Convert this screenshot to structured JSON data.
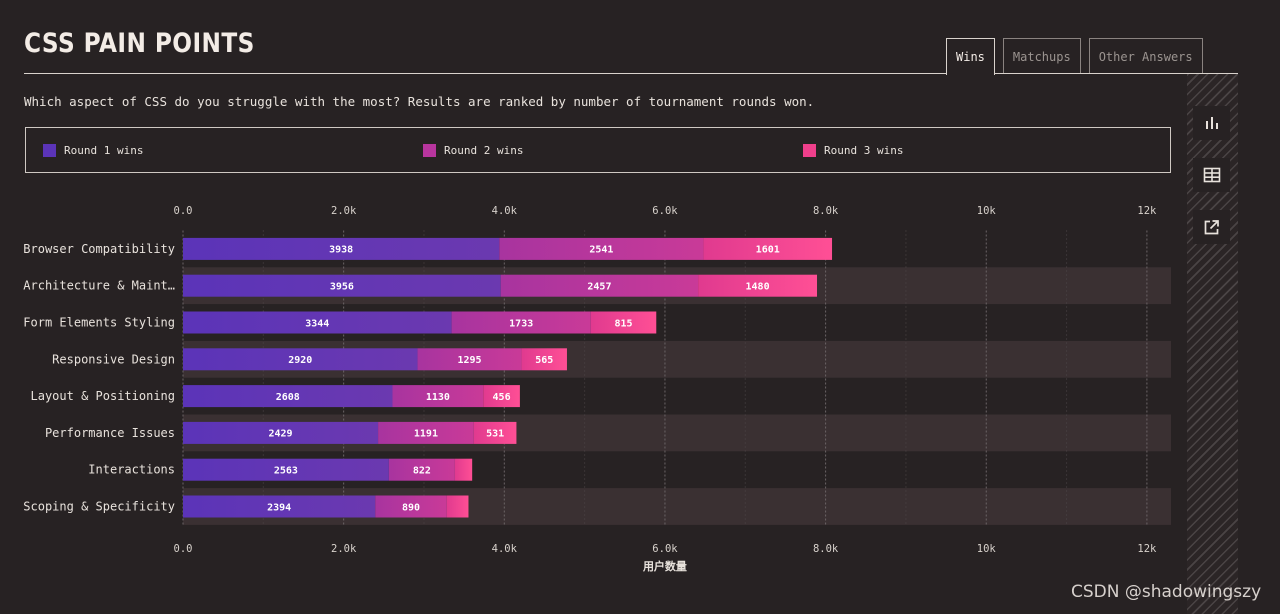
{
  "header": {
    "title": "CSS PAIN POINTS",
    "tabs": [
      {
        "label": "Wins",
        "active": true
      },
      {
        "label": "Matchups",
        "active": false
      },
      {
        "label": "Other Answers",
        "active": false
      }
    ],
    "description": "Which aspect of CSS do you struggle with the most? Results are ranked by number of tournament rounds won."
  },
  "legend": [
    {
      "label": "Round 1 wins",
      "color": "#5b34b8"
    },
    {
      "label": "Round 2 wins",
      "color": "#b8359e"
    },
    {
      "label": "Round 3 wins",
      "color": "#ef3f8b"
    }
  ],
  "sidebar": {
    "buttons": [
      {
        "name": "bar-chart-icon"
      },
      {
        "name": "table-icon"
      },
      {
        "name": "external-link-icon"
      }
    ]
  },
  "watermark": "CSDN @shadowingszy",
  "chart_data": {
    "type": "bar",
    "orientation": "horizontal",
    "stacked": true,
    "categories": [
      "Browser Compatibility",
      "Architecture & Maint…",
      "Form Elements Styling",
      "Responsive Design",
      "Layout & Positioning",
      "Performance Issues",
      "Interactions",
      "Scoping & Specificity"
    ],
    "series": [
      {
        "name": "Round 1 wins",
        "color": "#5b34b8",
        "color_end": "#6b39b0",
        "values": [
          3938,
          3956,
          3344,
          2920,
          2608,
          2429,
          2563,
          2394
        ]
      },
      {
        "name": "Round 2 wins",
        "color": "#a8349f",
        "color_end": "#c93a98",
        "values": [
          2541,
          2457,
          1733,
          1295,
          1130,
          1191,
          822,
          890
        ]
      },
      {
        "name": "Round 3 wins",
        "color": "#e03a8f",
        "color_end": "#ff4f95",
        "values": [
          1601,
          1480,
          815,
          565,
          456,
          531,
          215,
          270
        ]
      }
    ],
    "value_labels": [
      [
        "3938",
        "2541",
        "1601"
      ],
      [
        "3956",
        "2457",
        "1480"
      ],
      [
        "3344",
        "1733",
        "815"
      ],
      [
        "2920",
        "1295",
        "565"
      ],
      [
        "2608",
        "1130",
        "456"
      ],
      [
        "2429",
        "1191",
        "531"
      ],
      [
        "2563",
        "822",
        ""
      ],
      [
        "2394",
        "890",
        ""
      ]
    ],
    "xticks": [
      0,
      2000,
      4000,
      6000,
      8000,
      10000,
      12000
    ],
    "xtick_labels": [
      "0.0",
      "2.0k",
      "4.0k",
      "6.0k",
      "8.0k",
      "10k",
      "12k"
    ],
    "xlim": [
      0,
      12300
    ],
    "xlabel": "用户数量",
    "ylabel": "",
    "grid": true
  }
}
